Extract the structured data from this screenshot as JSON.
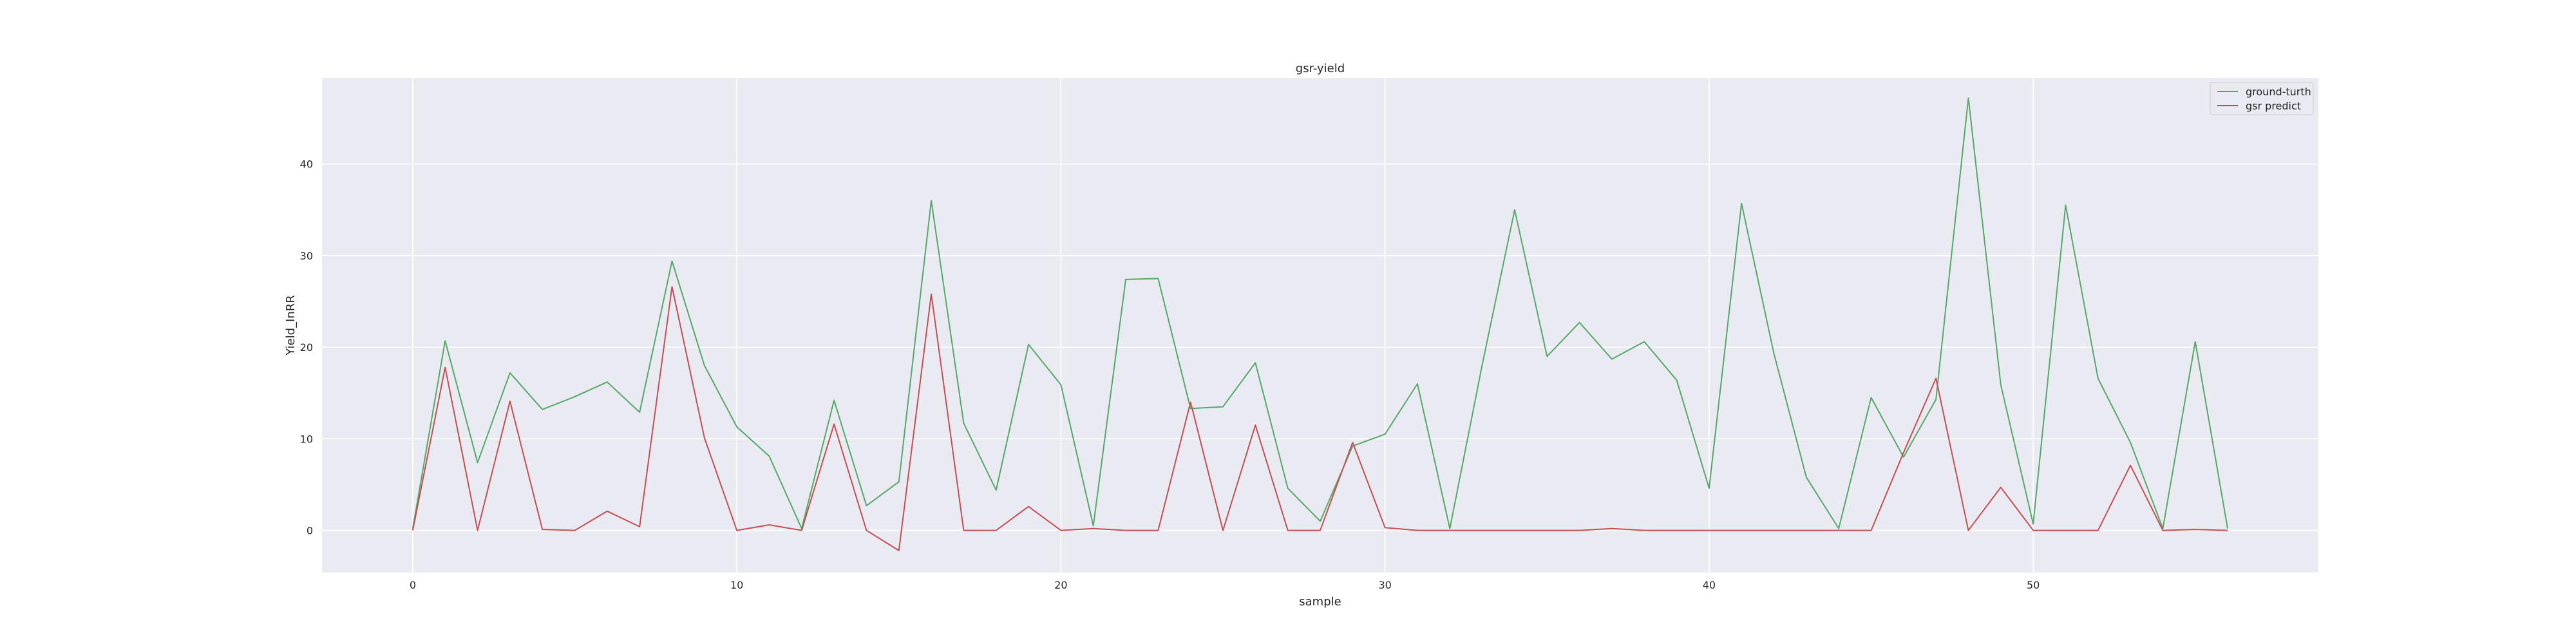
{
  "chart_data": {
    "type": "line",
    "title": "gsr-yield",
    "xlabel": "sample",
    "ylabel": "Yield_InRR",
    "xlim": [
      -2.8,
      58.8
    ],
    "ylim": [
      -4.6,
      49.4
    ],
    "xticks": [
      0,
      10,
      20,
      30,
      40,
      50
    ],
    "yticks": [
      0,
      10,
      20,
      30,
      40
    ],
    "grid": true,
    "legend_position": "top-right",
    "background": "#eaeaf2",
    "series": [
      {
        "name": "ground-turth",
        "color": "#55a868",
        "x": [
          0,
          1,
          2,
          3,
          4,
          5,
          6,
          7,
          8,
          9,
          10,
          11,
          12,
          13,
          14,
          15,
          16,
          17,
          18,
          19,
          20,
          21,
          22,
          23,
          24,
          25,
          26,
          27,
          28,
          29,
          30,
          31,
          32,
          33,
          34,
          35,
          36,
          37,
          38,
          39,
          40,
          41,
          42,
          43,
          44,
          45,
          46,
          47,
          48,
          49,
          50,
          51,
          52,
          53,
          54,
          55,
          56
        ],
        "values": [
          0.2,
          20.7,
          7.4,
          17.2,
          13.2,
          14.6,
          16.2,
          12.9,
          29.4,
          18.0,
          11.3,
          8.1,
          0.2,
          14.2,
          2.7,
          5.3,
          36.0,
          11.7,
          4.4,
          20.3,
          15.9,
          0.5,
          27.4,
          27.5,
          13.3,
          13.5,
          18.3,
          4.6,
          1.0,
          9.2,
          10.5,
          16.0,
          0.2,
          18.1,
          35.0,
          19.0,
          22.7,
          18.7,
          20.6,
          16.4,
          4.6,
          35.7,
          19.3,
          5.8,
          0.2,
          14.5,
          8.0,
          14.3,
          47.2,
          15.9,
          0.7,
          35.5,
          16.6,
          9.6,
          0.2,
          20.6,
          0.2
        ]
      },
      {
        "name": "gsr predict",
        "color": "#c44e52",
        "x": [
          0,
          1,
          2,
          3,
          4,
          5,
          6,
          7,
          8,
          9,
          10,
          11,
          12,
          13,
          14,
          15,
          16,
          17,
          18,
          19,
          20,
          21,
          22,
          23,
          24,
          25,
          26,
          27,
          28,
          29,
          30,
          31,
          32,
          33,
          34,
          35,
          36,
          37,
          38,
          39,
          40,
          41,
          42,
          43,
          44,
          45,
          46,
          47,
          48,
          49,
          50,
          51,
          52,
          53,
          54,
          55,
          56
        ],
        "values": [
          0.0,
          17.8,
          0.0,
          14.1,
          0.1,
          0.0,
          2.1,
          0.4,
          26.6,
          10.1,
          0.0,
          0.6,
          0.0,
          11.6,
          0.0,
          -2.2,
          25.8,
          0.0,
          0.0,
          2.6,
          0.0,
          0.2,
          0.0,
          0.0,
          14.0,
          0.0,
          11.5,
          0.0,
          0.0,
          9.6,
          0.3,
          0.0,
          0.0,
          0.0,
          0.0,
          0.0,
          0.0,
          0.2,
          0.0,
          0.0,
          0.0,
          0.0,
          0.0,
          0.0,
          0.0,
          0.0,
          8.5,
          16.6,
          0.0,
          4.7,
          0.0,
          0.0,
          0.0,
          7.1,
          0.0,
          0.1,
          0.0
        ]
      }
    ]
  }
}
